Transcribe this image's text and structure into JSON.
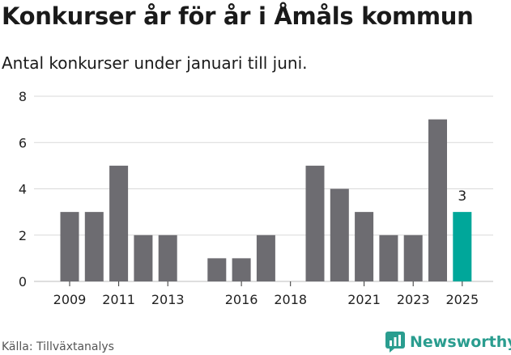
{
  "title": "Konkurser år för år i Åmåls kommun",
  "subtitle": "Antal konkurser under januari till juni.",
  "source": "Källa: Tillväxtanalys",
  "brand": {
    "name": "Newsworthy",
    "logo_icon": "newsworthy-logo-icon",
    "color": "#2a9d8f"
  },
  "chart_data": {
    "type": "bar",
    "title": "Konkurser år för år i Åmåls kommun",
    "subtitle": "Antal konkurser under januari till juni.",
    "xlabel": "",
    "ylabel": "",
    "categories": [
      "2009",
      "2010",
      "2011",
      "2012",
      "2013",
      "2014",
      "2015",
      "2016",
      "2017",
      "2018",
      "2019",
      "2020",
      "2021",
      "2022",
      "2023",
      "2024",
      "2025"
    ],
    "values": [
      3,
      3,
      5,
      2,
      2,
      0,
      1,
      1,
      2,
      0,
      5,
      4,
      3,
      2,
      2,
      7,
      3
    ],
    "x_tick_labels": [
      "2009",
      "2011",
      "2013",
      "2016",
      "2018",
      "2021",
      "2023",
      "2025"
    ],
    "y_ticks": [
      0,
      2,
      4,
      6,
      8
    ],
    "ylim": [
      0,
      8
    ],
    "grid": true,
    "highlight": {
      "category": "2025",
      "label": "3"
    },
    "colors": {
      "bar": "#6d6c71",
      "highlight": "#00a79a",
      "grid": "#d9d9d9",
      "axis_text": "#222222"
    }
  }
}
